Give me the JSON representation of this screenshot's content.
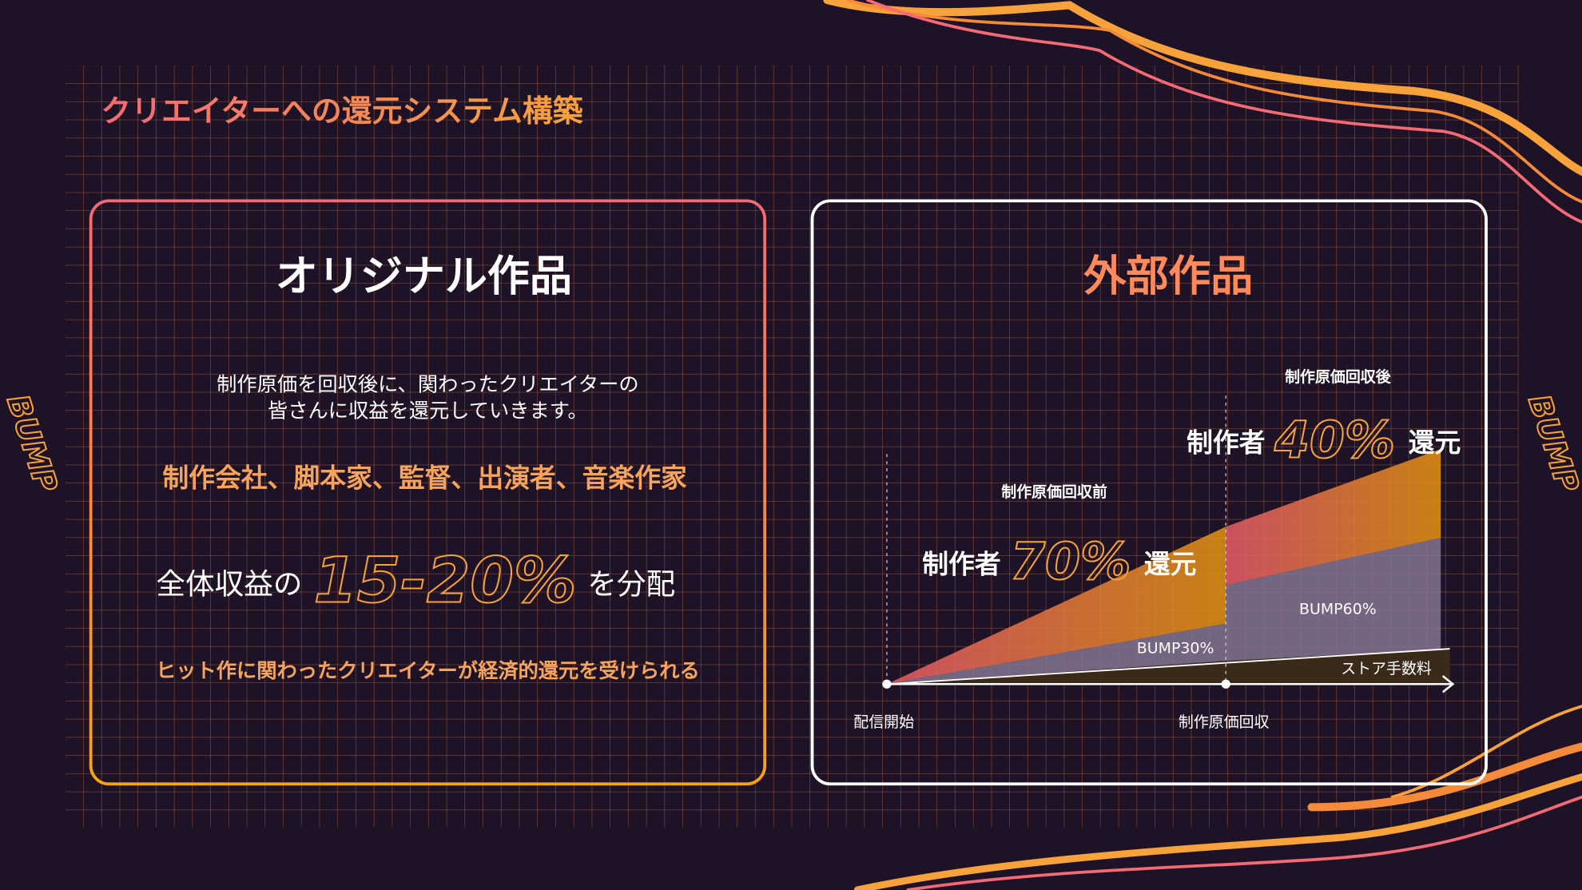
{
  "header": {
    "title": "クリエイターへの還元システム構築"
  },
  "logo": "BUMP",
  "left_card": {
    "title": "オリジナル作品",
    "description": [
      "制作原価を回収後に、関わったクリエイターの",
      "皆さんに収益を還元していきます。"
    ],
    "roles": "制作会社、脚本家、監督、出演者、音楽作家",
    "share": {
      "prefix": "全体収益の",
      "value": "15-20%",
      "suffix": "を分配"
    },
    "note": "ヒット作に関わったクリエイターが経済的還元を受けられる"
  },
  "right_card": {
    "title": "外部作品",
    "phase_before": {
      "label": "制作原価回収前",
      "prefix": "制作者",
      "value": "70%",
      "suffix": "還元"
    },
    "phase_after": {
      "label": "制作原価回収後",
      "prefix": "制作者",
      "value": "40%",
      "suffix": "還元"
    },
    "areas": [
      "BUMP30%",
      "BUMP60%",
      "ストア手数料"
    ],
    "x_labels": [
      "配信開始",
      "制作原価回収"
    ]
  }
}
